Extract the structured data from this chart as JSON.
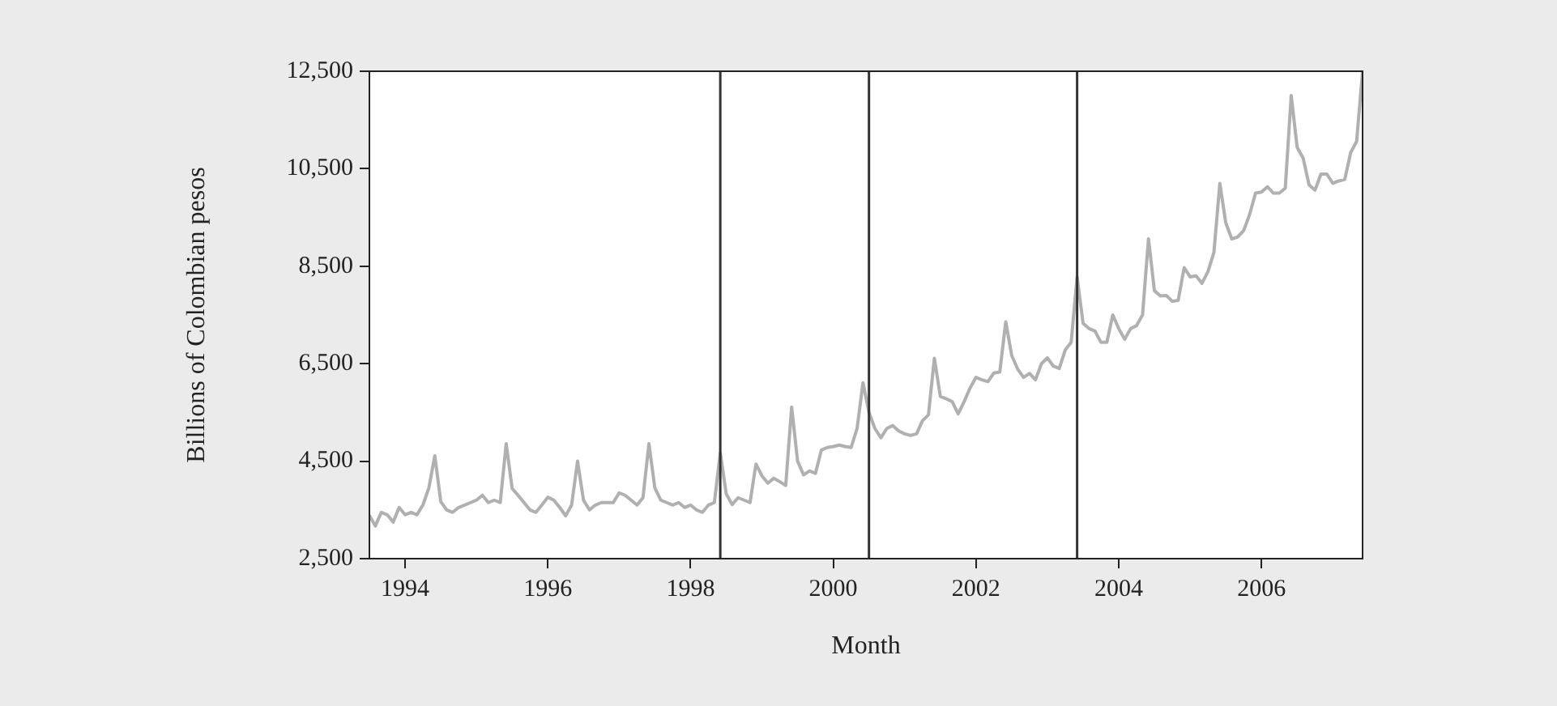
{
  "chart_data": {
    "type": "line",
    "xlabel": "Month",
    "ylabel": "Billions of Colombian pesos",
    "x": [
      "1994-01",
      "1994-02",
      "1994-03",
      "1994-04",
      "1994-05",
      "1994-06",
      "1994-07",
      "1994-08",
      "1994-09",
      "1994-10",
      "1994-11",
      "1994-12",
      "1995-01",
      "1995-02",
      "1995-03",
      "1995-04",
      "1995-05",
      "1995-06",
      "1995-07",
      "1995-08",
      "1995-09",
      "1995-10",
      "1995-11",
      "1995-12",
      "1996-01",
      "1996-02",
      "1996-03",
      "1996-04",
      "1996-05",
      "1996-06",
      "1996-07",
      "1996-08",
      "1996-09",
      "1996-10",
      "1996-11",
      "1996-12",
      "1997-01",
      "1997-02",
      "1997-03",
      "1997-04",
      "1997-05",
      "1997-06",
      "1997-07",
      "1997-08",
      "1997-09",
      "1997-10",
      "1997-11",
      "1997-12",
      "1998-01",
      "1998-02",
      "1998-03",
      "1998-04",
      "1998-05",
      "1998-06",
      "1998-07",
      "1998-08",
      "1998-09",
      "1998-10",
      "1998-11",
      "1998-12",
      "1999-01",
      "1999-02",
      "1999-03",
      "1999-04",
      "1999-05",
      "1999-06",
      "1999-07",
      "1999-08",
      "1999-09",
      "1999-10",
      "1999-11",
      "1999-12",
      "2000-01",
      "2000-02",
      "2000-03",
      "2000-04",
      "2000-05",
      "2000-06",
      "2000-07",
      "2000-08",
      "2000-09",
      "2000-10",
      "2000-11",
      "2000-12",
      "2001-01",
      "2001-02",
      "2001-03",
      "2001-04",
      "2001-05",
      "2001-06",
      "2001-07",
      "2001-08",
      "2001-09",
      "2001-10",
      "2001-11",
      "2001-12",
      "2002-01",
      "2002-02",
      "2002-03",
      "2002-04",
      "2002-05",
      "2002-06",
      "2002-07",
      "2002-08",
      "2002-09",
      "2002-10",
      "2002-11",
      "2002-12",
      "2003-01",
      "2003-02",
      "2003-03",
      "2003-04",
      "2003-05",
      "2003-06",
      "2003-07",
      "2003-08",
      "2003-09",
      "2003-10",
      "2003-11",
      "2003-12",
      "2004-01",
      "2004-02",
      "2004-03",
      "2004-04",
      "2004-05",
      "2004-06",
      "2004-07",
      "2004-08",
      "2004-09",
      "2004-10",
      "2004-11",
      "2004-12",
      "2005-01",
      "2005-02",
      "2005-03",
      "2005-04",
      "2005-05",
      "2005-06",
      "2005-07",
      "2005-08",
      "2005-09",
      "2005-10",
      "2005-11",
      "2005-12",
      "2006-01",
      "2006-02",
      "2006-03",
      "2006-04",
      "2006-05",
      "2006-06",
      "2006-07",
      "2006-08",
      "2006-09",
      "2006-10",
      "2006-11",
      "2006-12",
      "2007-01",
      "2007-02",
      "2007-03",
      "2007-04",
      "2007-05",
      "2007-06",
      "2007-07",
      "2007-08",
      "2007-09",
      "2007-10",
      "2007-11",
      "2007-12"
    ],
    "series": [
      {
        "color": "#b0b0b0",
        "values": [
          3390,
          3170,
          3450,
          3400,
          3250,
          3550,
          3400,
          3450,
          3400,
          3600,
          3950,
          4610,
          3670,
          3500,
          3450,
          3550,
          3600,
          3650,
          3700,
          3800,
          3650,
          3700,
          3650,
          4860,
          3940,
          3800,
          3650,
          3500,
          3450,
          3600,
          3760,
          3700,
          3550,
          3380,
          3600,
          4500,
          3700,
          3500,
          3600,
          3650,
          3650,
          3650,
          3850,
          3800,
          3700,
          3600,
          3750,
          4860,
          3950,
          3700,
          3650,
          3600,
          3650,
          3550,
          3600,
          3500,
          3450,
          3600,
          3650,
          4670,
          3830,
          3610,
          3750,
          3700,
          3650,
          4440,
          4200,
          4050,
          4150,
          4080,
          4000,
          5610,
          4500,
          4220,
          4300,
          4250,
          4730,
          4780,
          4800,
          4830,
          4800,
          4780,
          5170,
          6110,
          5500,
          5170,
          4980,
          5170,
          5230,
          5120,
          5060,
          5030,
          5060,
          5330,
          5450,
          6610,
          5830,
          5780,
          5720,
          5470,
          5720,
          6000,
          6220,
          6170,
          6130,
          6310,
          6330,
          7360,
          6670,
          6390,
          6220,
          6300,
          6170,
          6500,
          6620,
          6450,
          6400,
          6780,
          6940,
          8280,
          7330,
          7220,
          7170,
          6940,
          6940,
          7500,
          7220,
          7000,
          7220,
          7280,
          7500,
          9060,
          8000,
          7890,
          7900,
          7780,
          7800,
          8470,
          8280,
          8300,
          8150,
          8390,
          8780,
          10200,
          9390,
          9060,
          9100,
          9230,
          9560,
          10000,
          10020,
          10130,
          10000,
          10000,
          10100,
          12000,
          10940,
          10720,
          10170,
          10060,
          10390,
          10390,
          10200,
          10250,
          10280,
          10830,
          11060,
          12500
        ]
      }
    ],
    "xlim": [
      "1994-01",
      "2007-12"
    ],
    "xticks": [
      {
        "value": "1994-07",
        "label": "1994"
      },
      {
        "value": "1996-07",
        "label": "1996"
      },
      {
        "value": "1998-07",
        "label": "1998"
      },
      {
        "value": "2000-07",
        "label": "2000"
      },
      {
        "value": "2002-07",
        "label": "2002"
      },
      {
        "value": "2004-07",
        "label": "2004"
      },
      {
        "value": "2006-07",
        "label": "2006"
      }
    ],
    "ylim": [
      2500,
      12500
    ],
    "yticks": [
      {
        "value": 2500,
        "label": "2,500"
      },
      {
        "value": 4500,
        "label": "4,500"
      },
      {
        "value": 6500,
        "label": "6,500"
      },
      {
        "value": 8500,
        "label": "8,500"
      },
      {
        "value": 10500,
        "label": "10,500"
      },
      {
        "value": 12500,
        "label": "12,500"
      }
    ],
    "ref_lines": [
      {
        "axis": "x",
        "value": "1998-12",
        "color": "#333333"
      },
      {
        "axis": "x",
        "value": "2001-01",
        "color": "#333333"
      },
      {
        "axis": "x",
        "value": "2003-12",
        "color": "#333333"
      }
    ],
    "grid": false,
    "legend": false,
    "marker": "none",
    "line_style": "solid"
  }
}
